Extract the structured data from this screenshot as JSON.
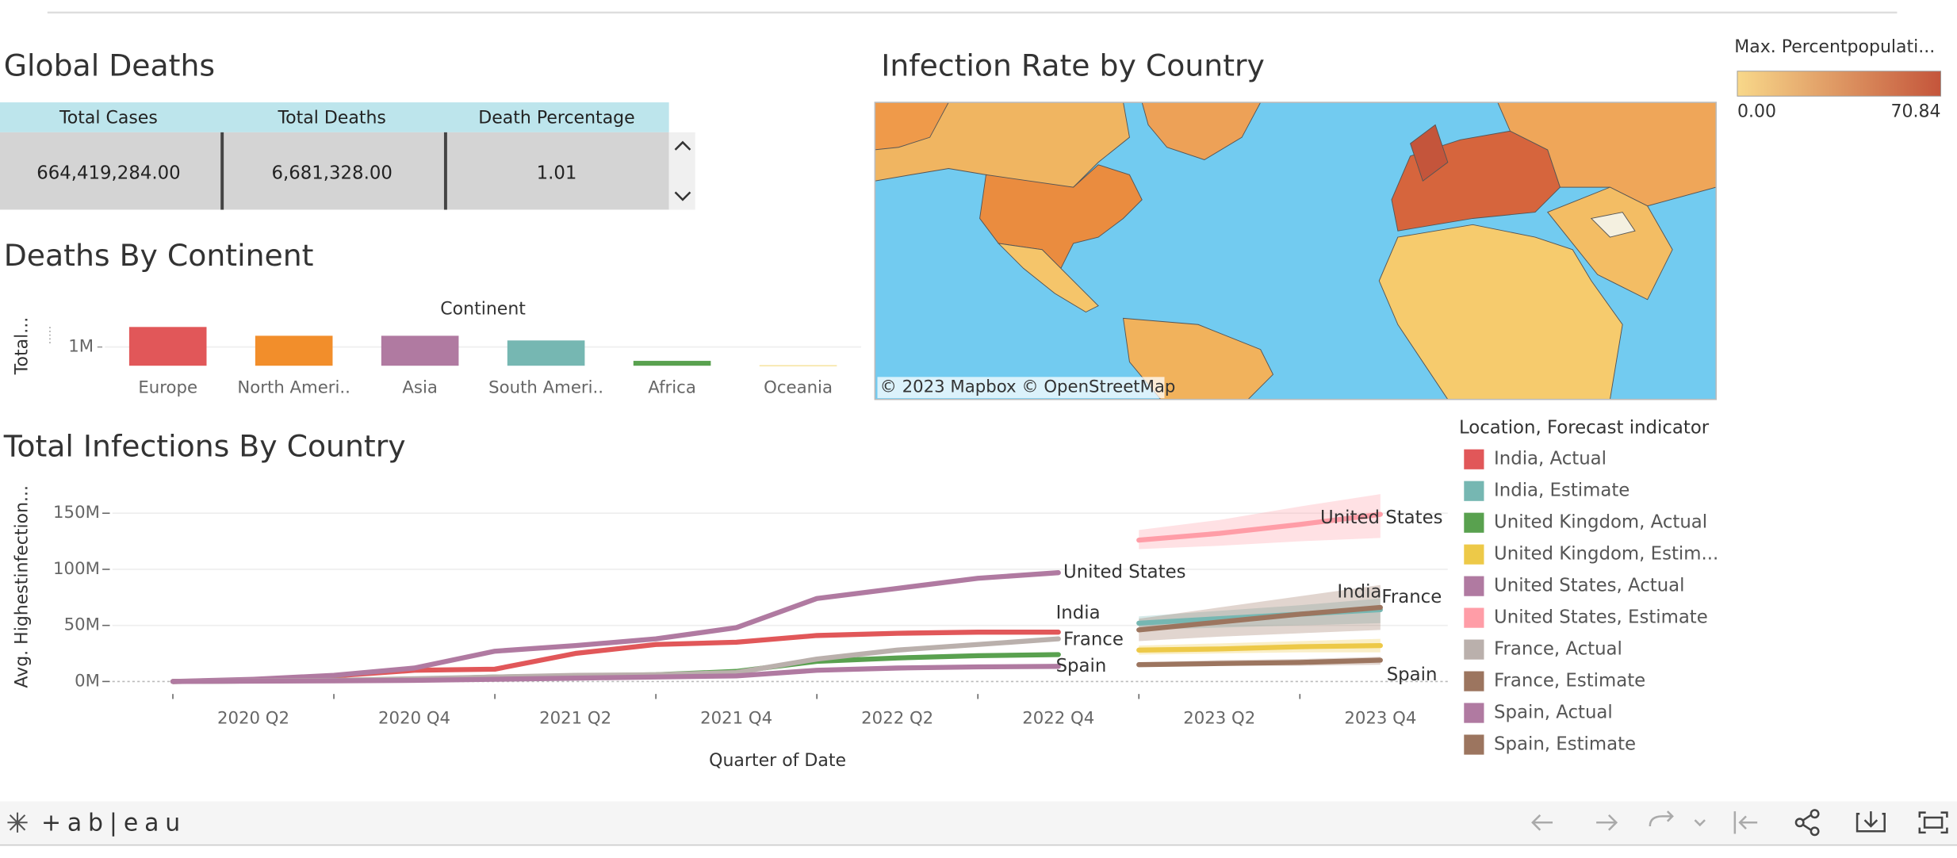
{
  "table": {
    "title": "Global Deaths",
    "columns": [
      "Total Cases",
      "Total Deaths",
      "Death Percentage"
    ],
    "rows": [
      [
        "664,419,284.00",
        "6,681,328.00",
        "1.01"
      ]
    ]
  },
  "map": {
    "title": "Infection Rate by Country",
    "attribution": "© 2023 Mapbox  © OpenStreetMap",
    "legend": {
      "title": "Max. Percentpopulati...",
      "min_label": "0.00",
      "max_label": "70.84",
      "colors": [
        "#f8d88a",
        "#c4553b"
      ]
    }
  },
  "chart_data": [
    {
      "type": "bar",
      "title": "Deaths By Continent",
      "x_label": "Continent",
      "y_label": "Total...",
      "categories": [
        "Europe",
        "North Ameri..",
        "Asia",
        "South Ameri..",
        "Africa",
        "Oceania"
      ],
      "values": [
        2.07,
        1.6,
        1.6,
        1.35,
        0.26,
        0.02
      ],
      "colors": [
        "#e15759",
        "#f28e2b",
        "#b07aa1",
        "#76b7b2",
        "#59a14f",
        "#edc948"
      ],
      "ylim": [
        0,
        2.2
      ],
      "yticks": [
        {
          "value": 1,
          "label": "1M"
        }
      ],
      "grid": true
    },
    {
      "type": "line",
      "title": "Total Infections By Country",
      "x_label": "Quarter of Date",
      "y_label": "Avg. Highestinfection...",
      "legend_title": "Location, Forecast indicator",
      "x": [
        null,
        "2020 Q2",
        null,
        "2020 Q4",
        null,
        "2021 Q2",
        null,
        "2021 Q4",
        null,
        "2022 Q2",
        null,
        "2022 Q4",
        null,
        "2023 Q2",
        null,
        "2023 Q4"
      ],
      "ylim": [
        -2,
        168
      ],
      "yticks": [
        {
          "value": 0,
          "label": "0M"
        },
        {
          "value": 50,
          "label": "50M"
        },
        {
          "value": 100,
          "label": "100M"
        },
        {
          "value": 150,
          "label": "150M"
        }
      ],
      "grid": true,
      "series": [
        {
          "name": "India, Actual",
          "color": "#e15759",
          "label": "India",
          "values": [
            0,
            1,
            5,
            10,
            11,
            25,
            33,
            35,
            41,
            43,
            44,
            44,
            null,
            null,
            null,
            null
          ]
        },
        {
          "name": "India, Estimate",
          "color": "#76b7b2",
          "label": "India",
          "values": [
            null,
            null,
            null,
            null,
            null,
            null,
            null,
            null,
            null,
            null,
            null,
            null,
            52,
            56,
            60,
            64
          ],
          "lower": [
            null,
            null,
            null,
            null,
            null,
            null,
            null,
            null,
            null,
            null,
            null,
            null,
            46,
            48,
            50,
            52
          ],
          "upper": [
            null,
            null,
            null,
            null,
            null,
            null,
            null,
            null,
            null,
            null,
            null,
            null,
            58,
            63,
            68,
            74
          ]
        },
        {
          "name": "United Kingdom, Actual",
          "color": "#59a14f",
          "values": [
            0,
            0.5,
            1,
            2,
            4,
            5,
            6,
            9,
            18,
            21,
            23,
            24,
            null,
            null,
            null,
            null
          ]
        },
        {
          "name": "United Kingdom, Estim...",
          "color": "#edc948",
          "values": [
            null,
            null,
            null,
            null,
            null,
            null,
            null,
            null,
            null,
            null,
            null,
            null,
            28,
            29,
            31,
            32
          ],
          "lower": [
            null,
            null,
            null,
            null,
            null,
            null,
            null,
            null,
            null,
            null,
            null,
            null,
            24,
            25,
            26,
            26
          ],
          "upper": [
            null,
            null,
            null,
            null,
            null,
            null,
            null,
            null,
            null,
            null,
            null,
            null,
            32,
            34,
            36,
            38
          ]
        },
        {
          "name": "United States, Actual",
          "color": "#b07aa1",
          "label": "United States",
          "values": [
            0,
            2,
            5.5,
            12,
            27,
            32,
            38,
            48,
            74,
            83,
            92,
            97,
            null,
            null,
            null,
            null
          ]
        },
        {
          "name": "United States, Estimate",
          "color": "#ff9da7",
          "label": "United States",
          "values": [
            null,
            null,
            null,
            null,
            null,
            null,
            null,
            null,
            null,
            null,
            null,
            null,
            126,
            132,
            140,
            149
          ],
          "lower": [
            null,
            null,
            null,
            null,
            null,
            null,
            null,
            null,
            null,
            null,
            null,
            null,
            118,
            121,
            125,
            128
          ],
          "upper": [
            null,
            null,
            null,
            null,
            null,
            null,
            null,
            null,
            null,
            null,
            null,
            null,
            135,
            144,
            156,
            167
          ]
        },
        {
          "name": "France, Actual",
          "color": "#bab0ac",
          "label": "France",
          "values": [
            0,
            0.5,
            1,
            2.5,
            4,
            5.5,
            6,
            8,
            20,
            28,
            33,
            38,
            null,
            null,
            null,
            null
          ]
        },
        {
          "name": "France, Estimate",
          "color": "#9c755f",
          "label": "France",
          "values": [
            null,
            null,
            null,
            null,
            null,
            null,
            null,
            null,
            null,
            null,
            null,
            null,
            46,
            53,
            60,
            66
          ],
          "lower": [
            null,
            null,
            null,
            null,
            null,
            null,
            null,
            null,
            null,
            null,
            null,
            null,
            36,
            40,
            43,
            46
          ],
          "upper": [
            null,
            null,
            null,
            null,
            null,
            null,
            null,
            null,
            null,
            null,
            null,
            null,
            56,
            66,
            76,
            86
          ]
        },
        {
          "name": "Spain, Actual",
          "color": "#b07aa1",
          "label": "Spain",
          "values": [
            0,
            0.3,
            0.6,
            1,
            2,
            3,
            4,
            5,
            10,
            12,
            13,
            13.5,
            null,
            null,
            null,
            null
          ]
        },
        {
          "name": "Spain, Estimate",
          "color": "#9c755f",
          "label": "Spain",
          "values": [
            null,
            null,
            null,
            null,
            null,
            null,
            null,
            null,
            null,
            null,
            null,
            null,
            15,
            16,
            17,
            19
          ],
          "lower": [
            null,
            null,
            null,
            null,
            null,
            null,
            null,
            null,
            null,
            null,
            null,
            null,
            13,
            14,
            14,
            15
          ],
          "upper": [
            null,
            null,
            null,
            null,
            null,
            null,
            null,
            null,
            null,
            null,
            null,
            null,
            17,
            19,
            20,
            22
          ]
        }
      ]
    }
  ],
  "footer": {
    "logo": "+ab|eau"
  }
}
